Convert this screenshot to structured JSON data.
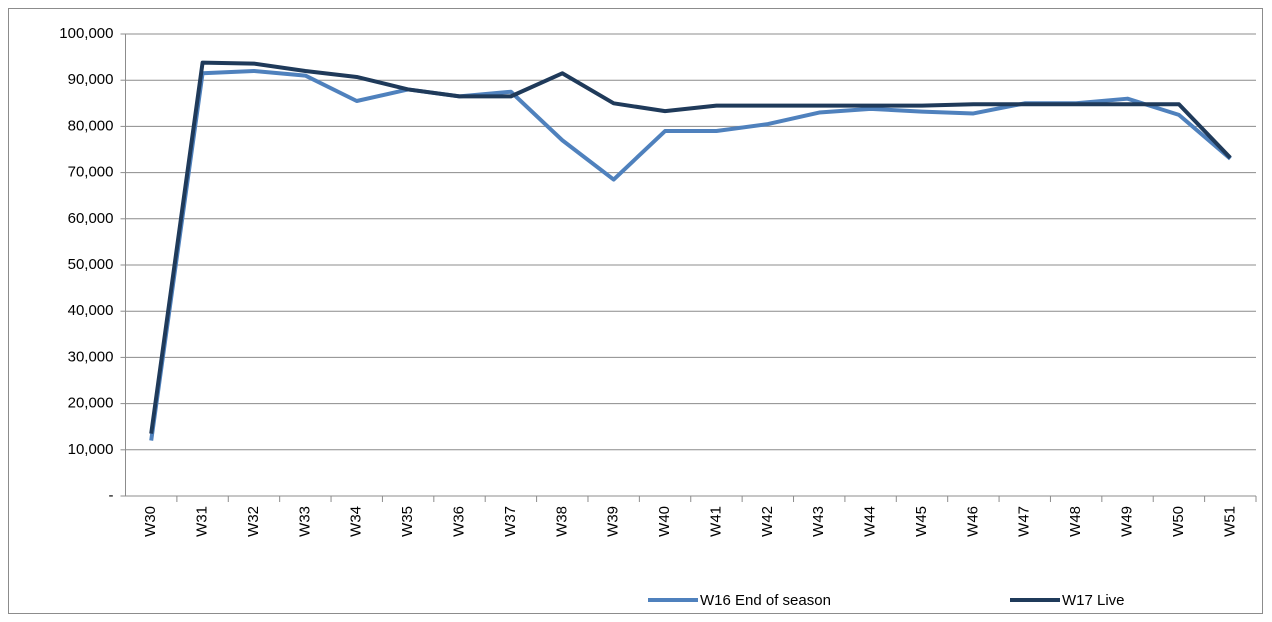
{
  "chart_data": {
    "type": "line",
    "categories": [
      "W30",
      "W31",
      "W32",
      "W33",
      "W34",
      "W35",
      "W36",
      "W37",
      "W38",
      "W39",
      "W40",
      "W41",
      "W42",
      "W43",
      "W44",
      "W45",
      "W46",
      "W47",
      "W48",
      "W49",
      "W50",
      "W51"
    ],
    "series": [
      {
        "name": "W16 End of season",
        "color": "#4f81bd",
        "values": [
          12000,
          91500,
          92000,
          91000,
          85500,
          88000,
          86500,
          87500,
          77000,
          68500,
          79000,
          79000,
          80500,
          83000,
          83800,
          83200,
          82800,
          85000,
          85000,
          86000,
          82500,
          73000
        ]
      },
      {
        "name": "W17 Live",
        "color": "#1f3a5a",
        "values": [
          13500,
          93800,
          93600,
          92000,
          90700,
          88000,
          86500,
          86500,
          91500,
          85000,
          83300,
          84500,
          84500,
          84500,
          84500,
          84500,
          84800,
          84800,
          84800,
          84800,
          84800,
          73200
        ]
      }
    ],
    "ylim": [
      0,
      100000
    ],
    "yticks": [
      {
        "value": 0,
        "label": "-"
      },
      {
        "value": 10000,
        "label": "10,000"
      },
      {
        "value": 20000,
        "label": "20,000"
      },
      {
        "value": 30000,
        "label": "30,000"
      },
      {
        "value": 40000,
        "label": "40,000"
      },
      {
        "value": 50000,
        "label": "50,000"
      },
      {
        "value": 60000,
        "label": "60,000"
      },
      {
        "value": 70000,
        "label": "70,000"
      },
      {
        "value": 80000,
        "label": "80,000"
      },
      {
        "value": 90000,
        "label": "90,000"
      },
      {
        "value": 100000,
        "label": "100,000"
      }
    ],
    "grid": true
  }
}
